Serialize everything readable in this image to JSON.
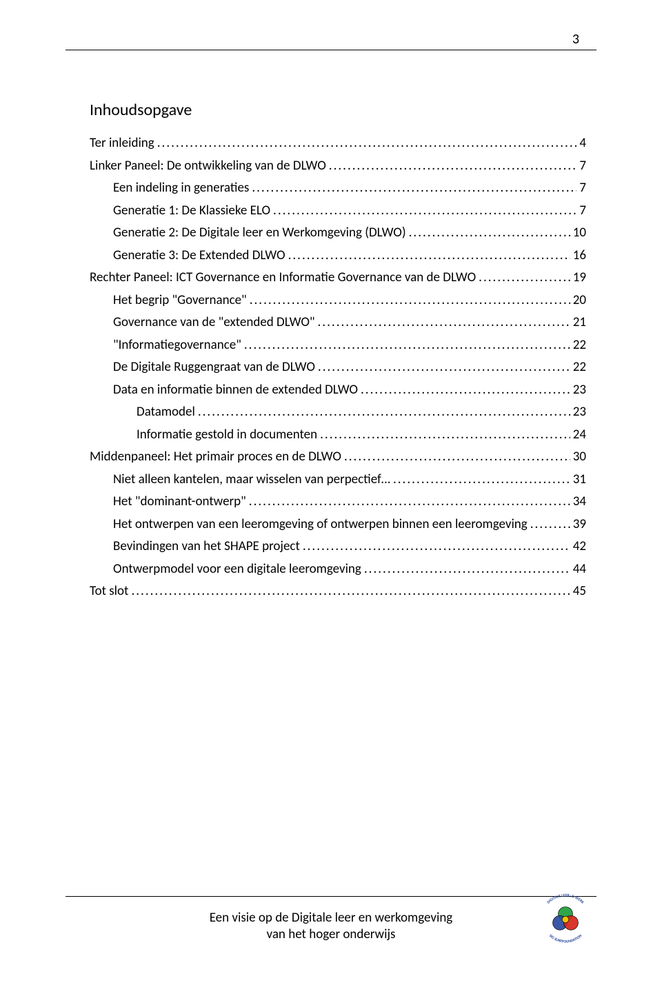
{
  "page_number": "3",
  "toc_title": "Inhoudsopgave",
  "toc": [
    {
      "level": 0,
      "label": "Ter inleiding",
      "page": "4"
    },
    {
      "level": 0,
      "label": "Linker Paneel:  De ontwikkeling van de DLWO",
      "page": "7"
    },
    {
      "level": 1,
      "label": "Een indeling in generaties",
      "page": "7"
    },
    {
      "level": 1,
      "label": "Generatie 1: De Klassieke ELO",
      "page": "7"
    },
    {
      "level": 1,
      "label": "Generatie 2: De Digitale leer en Werkomgeving (DLWO)",
      "page": "10"
    },
    {
      "level": 1,
      "label": "Generatie 3: De Extended DLWO",
      "page": "16"
    },
    {
      "level": 0,
      "label": "Rechter Paneel: ICT Governance en Informatie Governance van de DLWO",
      "page": "19"
    },
    {
      "level": 1,
      "label": "Het begrip \"Governance\"",
      "page": "20"
    },
    {
      "level": 1,
      "label": "Governance van de \"extended DLWO\"",
      "page": "21"
    },
    {
      "level": 1,
      "label": "\"Informatiegovernance\"",
      "page": "22"
    },
    {
      "level": 1,
      "label": "De Digitale Ruggengraat  van de DLWO",
      "page": "22"
    },
    {
      "level": 1,
      "label": "Data en informatie binnen de extended DLWO",
      "page": "23"
    },
    {
      "level": 2,
      "label": "Datamodel",
      "page": "23"
    },
    {
      "level": 2,
      "label": "Informatie gestold in  documenten",
      "page": "24"
    },
    {
      "level": 0,
      "label": "Middenpaneel:  Het primair proces en de DLWO",
      "page": "30"
    },
    {
      "level": 1,
      "label": "Niet alleen kantelen, maar wisselen van perpectief…",
      "page": "31"
    },
    {
      "level": 1,
      "label": "Het \"dominant-ontwerp\"",
      "page": "34"
    },
    {
      "level": 1,
      "label": "Het ontwerpen van een leeromgeving of ontwerpen binnen een leeromgeving",
      "page": "39"
    },
    {
      "level": 1,
      "label": "Bevindingen van het SHAPE project",
      "page": "42"
    },
    {
      "level": 1,
      "label": "Ontwerpmodel voor een digitale leeromgeving",
      "page": "44"
    },
    {
      "level": 0,
      "label": "Tot slot",
      "page": "45"
    }
  ],
  "footer_line1": "Een visie op de Digitale leer en werkomgeving",
  "footer_line2": "van het hoger onderwijs",
  "logo": {
    "outer_text_top": "DIGITALE LEER- & WERK",
    "outer_text_bottom": "SIG SURFFOUNDATION",
    "colors": {
      "ring_text": "#2a4aa0",
      "green": "#1f9e3a",
      "red": "#d6261c",
      "blue": "#2a4aa0",
      "yellow": "#f2c300",
      "outline": "#000000"
    }
  }
}
